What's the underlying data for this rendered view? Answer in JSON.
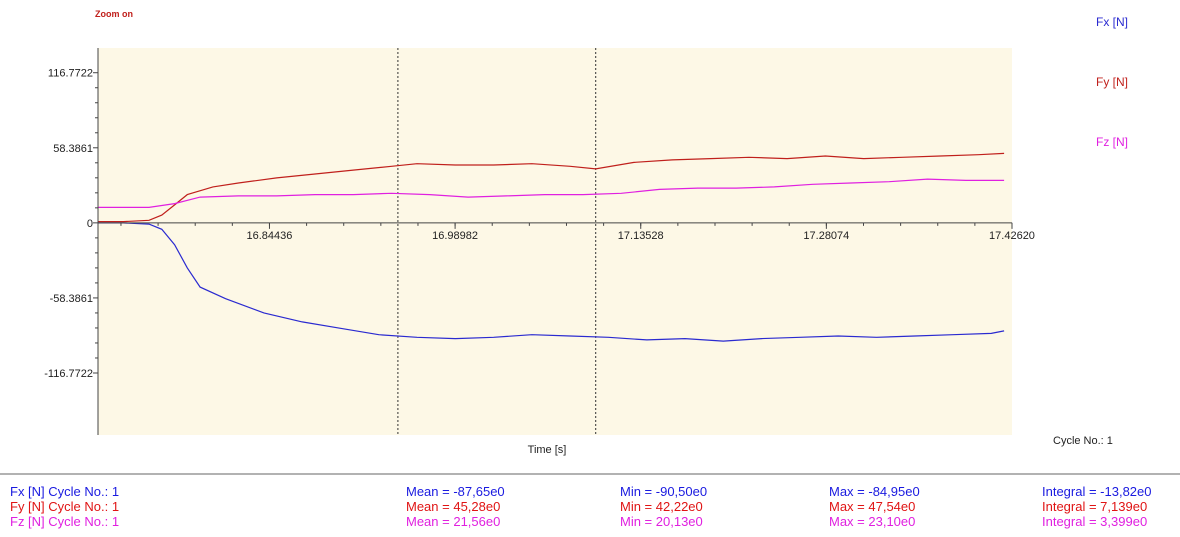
{
  "zoom_label": "Zoom on",
  "cycle_label": "Cycle No.: 1",
  "colors": {
    "plot_bg": "#fdf8e6",
    "fx": "#2a2ad0",
    "fy": "#c0201c",
    "fz": "#e020e0",
    "axis": "#444444",
    "cursor": "#333333"
  },
  "chart_data": {
    "type": "line",
    "xlabel": "Time [s]",
    "ylabel": "",
    "xlim": [
      16.71,
      17.4262
    ],
    "ylim": [
      -165.0,
      136.0
    ],
    "x_ticks": [
      {
        "value": 16.84436,
        "label": "16.84436"
      },
      {
        "value": 16.98982,
        "label": "16.98982"
      },
      {
        "value": 17.13528,
        "label": "17.13528"
      },
      {
        "value": 17.28074,
        "label": "17.28074"
      },
      {
        "value": 17.4262,
        "label": "17.42620"
      }
    ],
    "y_ticks": [
      {
        "value": 116.7722,
        "label": "116.7722"
      },
      {
        "value": 58.3861,
        "label": "58.3861"
      },
      {
        "value": 0,
        "label": "0"
      },
      {
        "value": -58.3861,
        "label": "-58.3861"
      },
      {
        "value": -116.7722,
        "label": "-116.7722"
      }
    ],
    "cursors": [
      16.945,
      17.1
    ],
    "legend": [
      "Fx [N]",
      "Fy [N]",
      "Fz [N]"
    ],
    "series": [
      {
        "name": "Fx [N]",
        "x": [
          16.71,
          16.73,
          16.75,
          16.76,
          16.77,
          16.78,
          16.79,
          16.81,
          16.84,
          16.87,
          16.9,
          16.93,
          16.96,
          16.99,
          17.02,
          17.05,
          17.08,
          17.11,
          17.14,
          17.17,
          17.2,
          17.23,
          17.26,
          17.29,
          17.32,
          17.35,
          17.38,
          17.41,
          17.42
        ],
        "y": [
          0,
          0,
          -1,
          -5,
          -17,
          -35,
          -50,
          -59,
          -70,
          -77,
          -82,
          -87,
          -89,
          -90,
          -89,
          -87,
          -88,
          -89,
          -91,
          -90,
          -92,
          -90,
          -89,
          -88,
          -89,
          -88,
          -87,
          -86,
          -84
        ]
      },
      {
        "name": "Fy [N]",
        "x": [
          16.71,
          16.73,
          16.75,
          16.76,
          16.77,
          16.78,
          16.8,
          16.82,
          16.85,
          16.88,
          16.91,
          16.94,
          16.96,
          16.99,
          17.02,
          17.05,
          17.08,
          17.1,
          17.13,
          17.16,
          17.19,
          17.22,
          17.25,
          17.28,
          17.31,
          17.34,
          17.37,
          17.4,
          17.42
        ],
        "y": [
          1,
          1,
          2,
          6,
          14,
          22,
          28,
          31,
          35,
          38,
          41,
          44,
          46,
          45,
          45,
          46,
          44,
          42,
          47,
          49,
          50,
          51,
          50,
          52,
          50,
          51,
          52,
          53,
          54
        ]
      },
      {
        "name": "Fz [N]",
        "x": [
          16.71,
          16.73,
          16.75,
          16.77,
          16.79,
          16.82,
          16.85,
          16.88,
          16.91,
          16.94,
          16.97,
          17.0,
          17.03,
          17.06,
          17.09,
          17.12,
          17.15,
          17.18,
          17.21,
          17.24,
          17.27,
          17.3,
          17.33,
          17.36,
          17.39,
          17.42
        ],
        "y": [
          12,
          12,
          12,
          15,
          20,
          21,
          21,
          22,
          22,
          23,
          22,
          20,
          21,
          22,
          22,
          23,
          26,
          27,
          27,
          28,
          30,
          31,
          32,
          34,
          33,
          33
        ]
      }
    ]
  },
  "stats": [
    {
      "name": "Fx [N] Cycle No.: 1",
      "mean": "Mean = -87,65e0",
      "min": "Min = -90,50e0",
      "max": "Max = -84,95e0",
      "integral": "Integral = -13,82e0",
      "color": "#1a1ae0"
    },
    {
      "name": "Fy [N] Cycle No.: 1",
      "mean": "Mean = 45,28e0",
      "min": "Min = 42,22e0",
      "max": "Max = 47,54e0",
      "integral": "Integral = 7,139e0",
      "color": "#e01414"
    },
    {
      "name": "Fz [N] Cycle No.: 1",
      "mean": "Mean = 21,56e0",
      "min": "Min = 20,13e0",
      "max": "Max = 23,10e0",
      "integral": "Integral = 3,399e0",
      "color": "#e020e0"
    }
  ]
}
